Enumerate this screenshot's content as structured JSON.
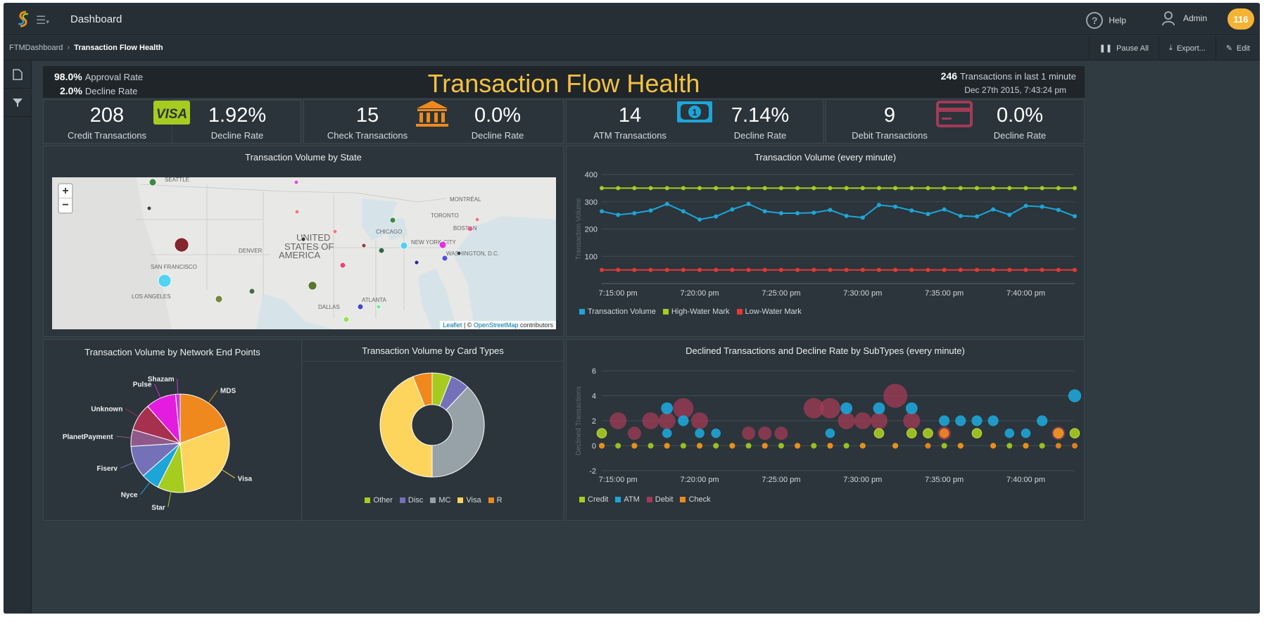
{
  "topbar": {
    "app_title": "Dashboard",
    "help_label": "Help",
    "user_label": "Admin",
    "notification_count": "116"
  },
  "breadcrumb": {
    "root": "FTMDashboard",
    "current": "Transaction Flow Health"
  },
  "actions": {
    "pause_all": "Pause All",
    "export": "Export...",
    "edit": "Edit"
  },
  "header": {
    "approval_value": "98.0%",
    "approval_label": "Approval Rate",
    "decline_value": "2.0%",
    "decline_label": "Decline Rate",
    "title": "Transaction Flow Health",
    "tx_count": "246",
    "tx_label": "Transactions in last 1 minute",
    "datetime": "Dec 27th 2015, 7:43:24 pm"
  },
  "kpis": [
    {
      "count": "208",
      "count_label": "Credit Transactions",
      "rate": "1.92%",
      "rate_label": "Decline Rate",
      "icon": "visa-card-icon",
      "color": "#a6cc1f"
    },
    {
      "count": "15",
      "count_label": "Check Transactions",
      "rate": "0.0%",
      "rate_label": "Decline Rate",
      "icon": "bank-icon",
      "color": "#f0891d"
    },
    {
      "count": "14",
      "count_label": "ATM Transactions",
      "rate": "7.14%",
      "rate_label": "Decline Rate",
      "icon": "cash-icon",
      "color": "#1ea5d8"
    },
    {
      "count": "9",
      "count_label": "Debit Transactions",
      "rate": "0.0%",
      "rate_label": "Decline Rate",
      "icon": "debit-card-icon",
      "color": "#a33b57"
    }
  ],
  "map_panel": {
    "title": "Transaction Volume by State",
    "zoom_in": "+",
    "zoom_out": "−",
    "attribution_leaflet": "Leaflet",
    "attribution_sep": " | © ",
    "attribution_osm": "OpenStreetMap",
    "attribution_tail": " contributors",
    "places": [
      "SEATTLE",
      "MONTRÉAL",
      "TORONTO",
      "CHICAGO",
      "BOSTON",
      "NEW YORK CITY",
      "WASHINGTON, D.C.",
      "DENVER",
      "UNITED",
      "STATES OF",
      "AMERICA",
      "SAN FRANCISCO",
      "LOS ANGELES",
      "DALLAS",
      "ATLANTA"
    ]
  },
  "colors": {
    "transaction_volume": "#1ea5d8",
    "high_water": "#a6cc1f",
    "low_water": "#e23a35",
    "credit": "#a6cc1f",
    "atm": "#1ea5d8",
    "debit": "#a33b57",
    "check": "#f0891d",
    "title_accent": "#f5c242"
  },
  "chart_data": [
    {
      "type": "line",
      "title": "Transaction Volume (every minute)",
      "ylabel": "Transaction Volume",
      "ylim": [
        0,
        400
      ],
      "yticks": [
        100,
        200,
        300,
        400
      ],
      "x_tick_labels": [
        "7:15:00 pm",
        "7:20:00 pm",
        "7:25:00 pm",
        "7:30:00 pm",
        "7:35:00 pm",
        "7:40:00 pm"
      ],
      "x_minutes": [
        14,
        15,
        16,
        17,
        18,
        19,
        20,
        21,
        22,
        23,
        24,
        25,
        26,
        27,
        28,
        29,
        30,
        31,
        32,
        33,
        34,
        35,
        36,
        37,
        38,
        39,
        40,
        41,
        42,
        43
      ],
      "legend_position": "bottom-left",
      "series": [
        {
          "name": "Transaction Volume",
          "values": [
            265,
            252,
            258,
            268,
            292,
            265,
            235,
            246,
            272,
            292,
            265,
            258,
            258,
            260,
            270,
            248,
            242,
            288,
            282,
            268,
            255,
            272,
            248,
            246,
            272,
            252,
            285,
            282,
            270,
            247
          ]
        },
        {
          "name": "High-Water Mark",
          "values": [
            350,
            350,
            350,
            350,
            350,
            350,
            350,
            350,
            350,
            350,
            350,
            350,
            350,
            350,
            350,
            350,
            350,
            350,
            350,
            350,
            350,
            350,
            350,
            350,
            350,
            350,
            350,
            350,
            350,
            350
          ]
        },
        {
          "name": "Low-Water Mark",
          "values": [
            50,
            50,
            50,
            50,
            50,
            50,
            50,
            50,
            50,
            50,
            50,
            50,
            50,
            50,
            50,
            50,
            50,
            50,
            50,
            50,
            50,
            50,
            50,
            50,
            50,
            50,
            50,
            50,
            50,
            50
          ]
        }
      ]
    },
    {
      "type": "pie",
      "title": "Transaction Volume by Network End Points",
      "categories": [
        "MDS",
        "Visa",
        "Star",
        "Nyce",
        "Fiserv",
        "PlanetPayment",
        "Unknown",
        "Pulse",
        "Shazam"
      ],
      "values": [
        19.5,
        29.0,
        9.0,
        6.0,
        10.5,
        5.5,
        9.0,
        10.0,
        1.5
      ]
    },
    {
      "type": "pie",
      "title": "Transaction Volume by Card Types",
      "donut": true,
      "categories": [
        "Other",
        "Disc",
        "MC",
        "Visa",
        "R"
      ],
      "values": [
        6,
        6,
        38,
        44,
        6
      ],
      "legend_position": "bottom"
    },
    {
      "type": "scatter",
      "title": "Declined Transactions and Decline Rate by SubTypes (every minute)",
      "ylabel": "Declined Transactions",
      "ylim": [
        -2,
        6
      ],
      "yticks": [
        -2,
        0,
        2,
        4,
        6
      ],
      "x_tick_labels": [
        "7:15:00 pm",
        "7:20:00 pm",
        "7:25:00 pm",
        "7:30:00 pm",
        "7:35:00 pm",
        "7:40:00 pm"
      ],
      "legend_position": "bottom-left",
      "series": [
        {
          "name": "Credit",
          "points": [
            [
              14,
              1
            ],
            [
              31,
              1
            ],
            [
              33,
              1
            ],
            [
              34,
              1
            ],
            [
              37,
              1
            ],
            [
              42,
              1
            ],
            [
              43,
              1
            ],
            [
              14,
              0
            ],
            [
              15,
              0
            ],
            [
              16,
              0
            ],
            [
              17,
              0
            ],
            [
              18,
              0
            ],
            [
              19,
              0
            ],
            [
              20,
              0
            ],
            [
              21,
              0
            ],
            [
              22,
              0
            ],
            [
              23,
              0
            ],
            [
              24,
              0
            ],
            [
              25,
              0
            ],
            [
              26,
              0
            ],
            [
              27,
              0
            ],
            [
              28,
              0
            ],
            [
              29,
              0
            ],
            [
              30,
              0
            ],
            [
              32,
              0
            ],
            [
              35,
              0
            ],
            [
              36,
              0
            ],
            [
              38,
              0
            ],
            [
              39,
              0
            ],
            [
              40,
              0
            ],
            [
              41,
              0
            ]
          ]
        },
        {
          "name": "ATM",
          "points": [
            [
              18,
              3
            ],
            [
              18,
              1
            ],
            [
              19,
              2
            ],
            [
              20,
              1
            ],
            [
              21,
              1
            ],
            [
              28,
              1
            ],
            [
              29,
              3
            ],
            [
              31,
              3
            ],
            [
              33,
              3
            ],
            [
              35,
              2
            ],
            [
              36,
              2
            ],
            [
              37,
              2
            ],
            [
              38,
              2
            ],
            [
              39,
              1
            ],
            [
              40,
              1
            ],
            [
              41,
              2
            ],
            [
              43,
              4
            ]
          ]
        },
        {
          "name": "Debit",
          "points": [
            [
              15,
              2
            ],
            [
              16,
              1
            ],
            [
              17,
              2
            ],
            [
              18,
              2
            ],
            [
              19,
              3
            ],
            [
              20,
              2
            ],
            [
              23,
              1
            ],
            [
              24,
              1
            ],
            [
              25,
              1
            ],
            [
              27,
              3
            ],
            [
              28,
              3
            ],
            [
              29,
              2
            ],
            [
              30,
              2
            ],
            [
              31,
              2
            ],
            [
              32,
              4
            ],
            [
              33,
              2
            ],
            [
              35,
              1
            ],
            [
              42,
              1
            ]
          ]
        },
        {
          "name": "Check",
          "points": [
            [
              14,
              0
            ],
            [
              16,
              0
            ],
            [
              18,
              0
            ],
            [
              20,
              0
            ],
            [
              22,
              0
            ],
            [
              24,
              0
            ],
            [
              26,
              0
            ],
            [
              28,
              0
            ],
            [
              30,
              0
            ],
            [
              32,
              0
            ],
            [
              34,
              0
            ],
            [
              36,
              0
            ],
            [
              38,
              0
            ],
            [
              40,
              0
            ],
            [
              42,
              0
            ],
            [
              43,
              0
            ],
            [
              35,
              1
            ],
            [
              42,
              1
            ]
          ]
        }
      ]
    }
  ]
}
